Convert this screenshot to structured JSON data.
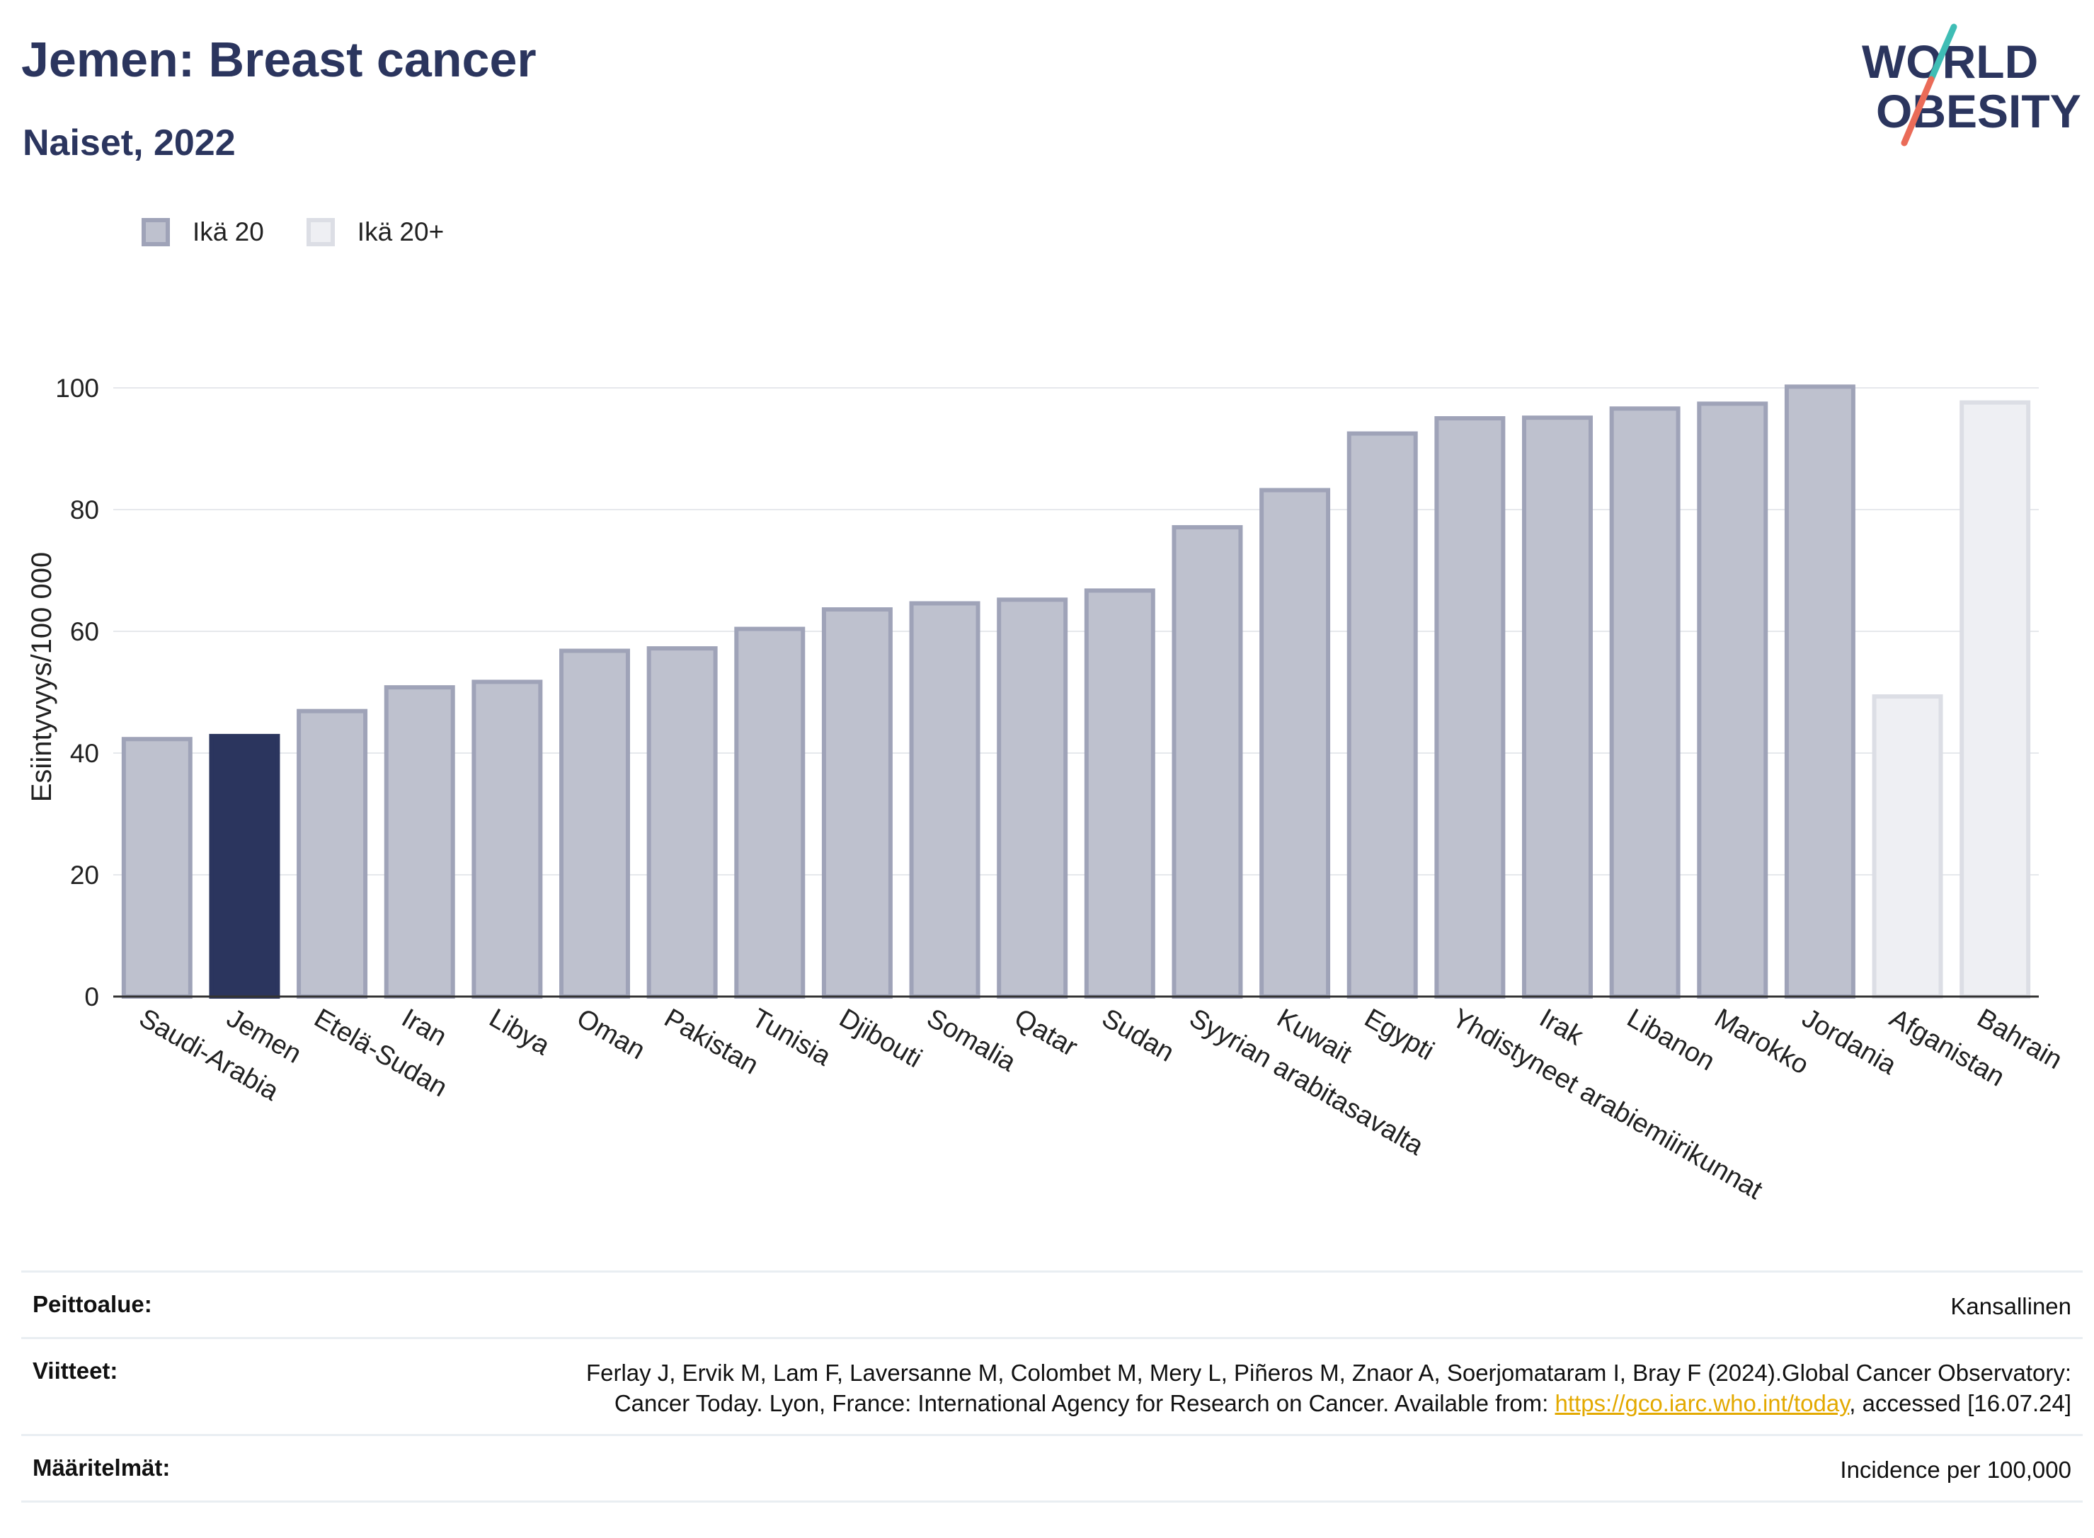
{
  "header": {
    "title": "Jemen: Breast cancer",
    "subtitle": "Naiset, 2022"
  },
  "logo": {
    "line1": "WORLD",
    "line2": "OBESITY",
    "icon": "world-obesity-logo"
  },
  "colors": {
    "series1_fill": "#bec1ce",
    "series1_border": "#9fa3b8",
    "highlight": "#2b355e",
    "series2_fill": "#eeeff3",
    "series2_border": "#dcdee5",
    "grid": "#e6e8ec",
    "text": "#222222",
    "title": "#2b355e"
  },
  "chart_data": {
    "type": "bar",
    "title": "Jemen: Breast cancer",
    "subtitle": "Naiset, 2022",
    "ylabel": "Esiintyvyys/100 000",
    "xlabel": "",
    "ylim": [
      0,
      105
    ],
    "yticks": [
      0,
      20,
      40,
      60,
      80,
      100
    ],
    "grid": true,
    "legend_position": "top-left",
    "highlight_category": "Jemen",
    "legend": [
      {
        "name": "Ikä 20",
        "color": "#bec1ce"
      },
      {
        "name": "Ikä 20+",
        "color": "#eeeff3"
      }
    ],
    "categories": [
      "Saudi-Arabia",
      "Jemen",
      "Etelä-Sudan",
      "Iran",
      "Libya",
      "Oman",
      "Pakistan",
      "Tunisia",
      "Djibouti",
      "Somalia",
      "Qatar",
      "Sudan",
      "Syyrian arabitasavalta",
      "Kuwait",
      "Egypti",
      "Yhdistyneet arabiemiirikunnat",
      "Irak",
      "Libanon",
      "Marokko",
      "Jordania",
      "Afganistan",
      "Bahrain"
    ],
    "series": [
      {
        "name": "Ikä 20",
        "values": [
          42.3,
          42.8,
          46.9,
          50.8,
          51.7,
          56.8,
          57.2,
          60.4,
          63.6,
          64.6,
          65.2,
          66.7,
          77.1,
          83.2,
          92.5,
          95.0,
          95.1,
          96.6,
          97.4,
          100.2,
          null,
          null
        ]
      },
      {
        "name": "Ikä 20+",
        "values": [
          null,
          null,
          null,
          null,
          null,
          null,
          null,
          null,
          null,
          null,
          null,
          null,
          null,
          null,
          null,
          null,
          null,
          null,
          null,
          null,
          49.3,
          97.6
        ]
      }
    ]
  },
  "footer": {
    "coverage_label": "Peittoalue:",
    "coverage_value": "Kansallinen",
    "references_label": "Viitteet:",
    "references_text_1": "Ferlay J, Ervik M, Lam F, Laversanne M, Colombet M, Mery L, Piñeros M, Znaor A, Soerjomataram I, Bray F (2024).Global Cancer Observatory: Cancer Today. Lyon, France: International Agency for Research on Cancer. Available from: ",
    "references_link": "https://gco.iarc.who.int/today",
    "references_text_2": ", accessed [16.07.24]",
    "definitions_label": "Määritelmät:",
    "definitions_value": "Incidence per 100,000"
  }
}
